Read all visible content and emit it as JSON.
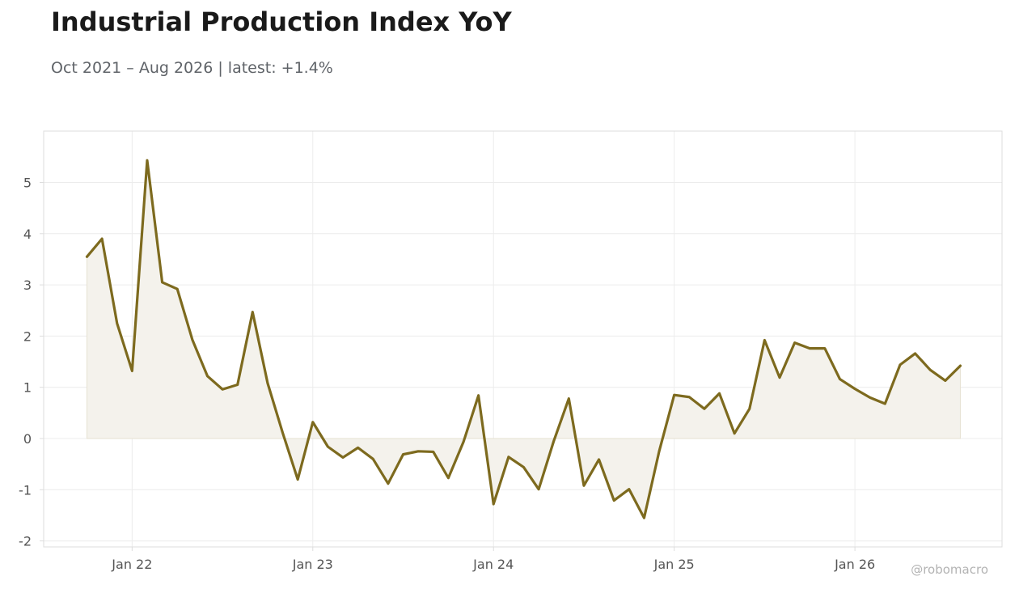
{
  "title": "Industrial Production Index YoY",
  "subtitle": "Oct 2021 – Aug 2026 | latest: +1.4%",
  "watermark": "@robomacro",
  "colors": {
    "line": "#7d6a1e",
    "fill": "#f4f2ec",
    "grid": "#ececec",
    "frame": "#dddddd",
    "text": "#555555"
  },
  "chart_data": {
    "type": "area",
    "x_start": "2021-10",
    "x_end": "2026-08",
    "frequency": "monthly",
    "x": [
      "2021-10",
      "2021-11",
      "2021-12",
      "2022-01",
      "2022-02",
      "2022-03",
      "2022-04",
      "2022-05",
      "2022-06",
      "2022-07",
      "2022-08",
      "2022-09",
      "2022-10",
      "2022-11",
      "2022-12",
      "2023-01",
      "2023-02",
      "2023-03",
      "2023-04",
      "2023-05",
      "2023-06",
      "2023-07",
      "2023-08",
      "2023-09",
      "2023-10",
      "2023-11",
      "2023-12",
      "2024-01",
      "2024-02",
      "2024-03",
      "2024-04",
      "2024-05",
      "2024-06",
      "2024-07",
      "2024-08",
      "2024-09",
      "2024-10",
      "2024-11",
      "2024-12",
      "2025-01",
      "2025-02",
      "2025-03",
      "2025-04",
      "2025-05",
      "2025-06",
      "2025-07",
      "2025-08",
      "2025-09",
      "2025-10",
      "2025-11",
      "2025-12",
      "2026-01",
      "2026-02",
      "2026-03",
      "2026-04",
      "2026-05",
      "2026-06",
      "2026-07",
      "2026-08"
    ],
    "values": [
      3.55,
      3.9,
      2.25,
      1.32,
      5.43,
      3.05,
      2.92,
      1.93,
      1.22,
      0.96,
      1.05,
      2.47,
      1.08,
      0.11,
      -0.8,
      0.32,
      -0.16,
      -0.37,
      -0.18,
      -0.4,
      -0.88,
      -0.31,
      -0.25,
      -0.26,
      -0.77,
      -0.07,
      0.84,
      -1.28,
      -0.36,
      -0.56,
      -0.99,
      -0.05,
      0.78,
      -0.92,
      -0.41,
      -1.21,
      -0.99,
      -1.55,
      -0.25,
      0.85,
      0.81,
      0.58,
      0.88,
      0.1,
      0.58,
      1.92,
      1.19,
      1.87,
      1.76,
      1.76,
      1.16,
      0.97,
      0.8,
      0.68,
      1.44,
      1.66,
      1.34,
      1.13,
      1.42
    ],
    "xticks": [
      "Jan 22",
      "Jan 23",
      "Jan 24",
      "Jan 25",
      "Jan 26"
    ],
    "yticks": [
      "-2",
      "-1",
      "0",
      "1",
      "2",
      "3",
      "4",
      "5"
    ],
    "ylim": [
      -2.1,
      5.95
    ],
    "grid": true,
    "baseline": 0
  }
}
